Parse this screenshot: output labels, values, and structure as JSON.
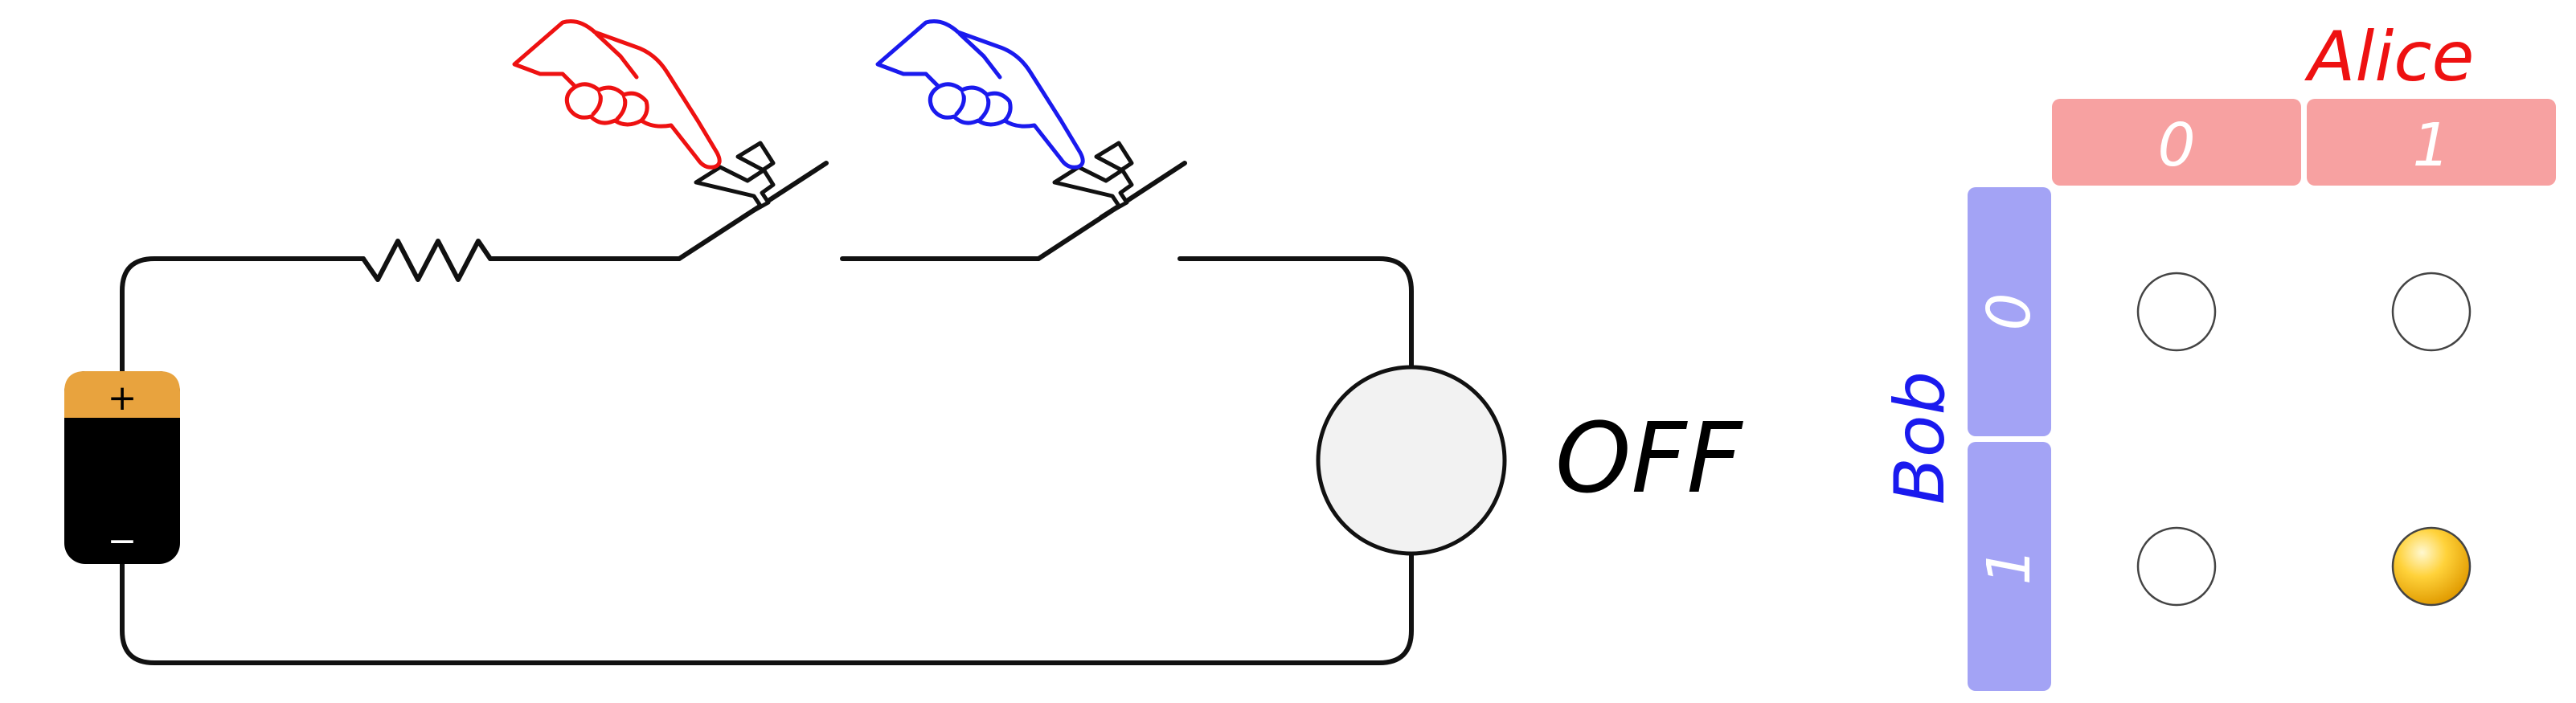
{
  "circuit": {
    "bulb_status": "OFF",
    "battery": {
      "positive_symbol": "+",
      "negative_symbol": "−"
    },
    "switches": [
      {
        "player": "Alice",
        "pressed": false
      },
      {
        "player": "Bob",
        "pressed": false
      }
    ]
  },
  "players": {
    "alice": {
      "name": "Alice",
      "color": "#ee1111"
    },
    "bob": {
      "name": "Bob",
      "color": "#1a1aee"
    }
  },
  "truth_table": {
    "alice_inputs": [
      "0",
      "1"
    ],
    "bob_inputs": [
      "0",
      "1"
    ],
    "cells": [
      [
        {
          "lit": false
        },
        {
          "lit": false
        }
      ],
      [
        {
          "lit": false
        },
        {
          "lit": true
        }
      ]
    ]
  },
  "colors": {
    "wire": "#111111",
    "battery_body": "#000000",
    "battery_cap": "#e8a33e",
    "bulb_fill": "#f2f2f2",
    "alice_header": "#f7a1a1",
    "bob_header": "#a3a3f5",
    "header_text": "#ffffff",
    "lamp_off": "#ffffff",
    "lamp_on": "#ffc21a"
  }
}
